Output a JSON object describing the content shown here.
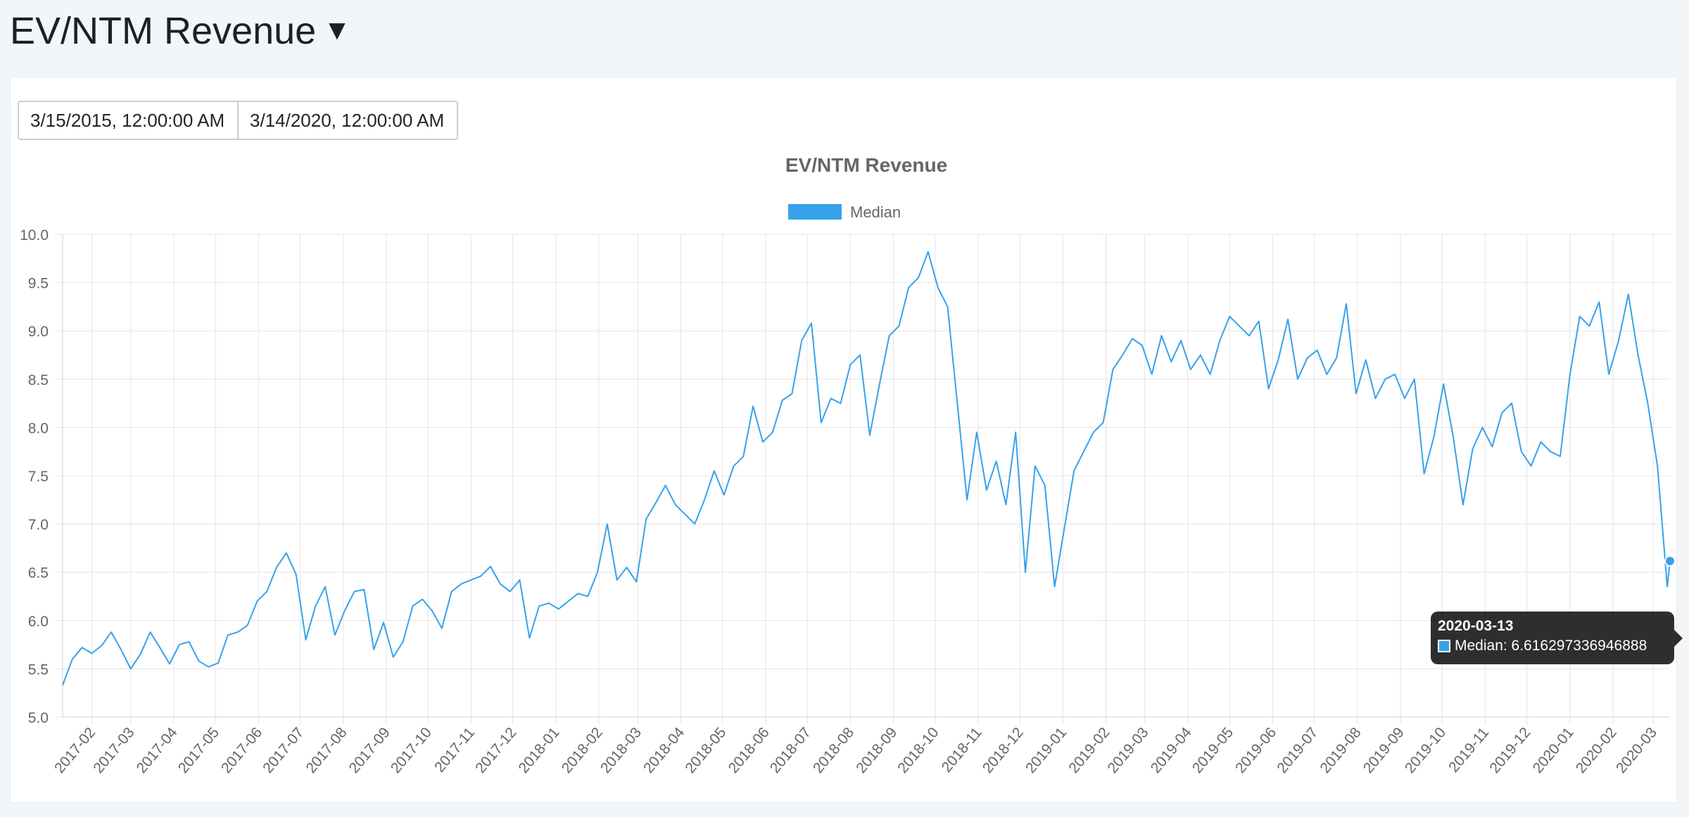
{
  "header": {
    "title": "EV/NTM Revenue",
    "caret": "▼"
  },
  "date_range": {
    "start": "3/15/2015, 12:00:00 AM",
    "end": "3/14/2020, 12:00:00 AM"
  },
  "tooltip": {
    "date": "2020-03-13",
    "series": "Median",
    "value": "6.616297336946888",
    "label": "Median: 6.616297336946888"
  },
  "colors": {
    "line": "#36a2eb",
    "grid": "#e4e4e4",
    "text": "#666666"
  },
  "chart_data": {
    "type": "line",
    "title": "EV/NTM Revenue",
    "legend": {
      "position": "top",
      "entries": [
        "Median"
      ]
    },
    "grid": true,
    "ylim": [
      5.0,
      10.0
    ],
    "y_ticks": [
      "10.0",
      "9.5",
      "9.0",
      "8.5",
      "8.0",
      "7.5",
      "7.0",
      "6.5",
      "6.0",
      "5.5",
      "5.0"
    ],
    "x_ticks": [
      "2017-02",
      "2017-03",
      "2017-04",
      "2017-05",
      "2017-06",
      "2017-07",
      "2017-08",
      "2017-09",
      "2017-10",
      "2017-11",
      "2017-12",
      "2018-01",
      "2018-02",
      "2018-03",
      "2018-04",
      "2018-05",
      "2018-06",
      "2018-07",
      "2018-08",
      "2018-09",
      "2018-10",
      "2018-11",
      "2018-12",
      "2019-01",
      "2019-02",
      "2019-03",
      "2019-04",
      "2019-05",
      "2019-06",
      "2019-07",
      "2019-08",
      "2019-09",
      "2019-10",
      "2019-11",
      "2019-12",
      "2020-01",
      "2020-02",
      "2020-03"
    ],
    "series": [
      {
        "name": "Median",
        "points": [
          [
            "2017-01-11",
            5.33
          ],
          [
            "2017-01-18",
            5.6
          ],
          [
            "2017-01-25",
            5.72
          ],
          [
            "2017-02-01",
            5.66
          ],
          [
            "2017-02-08",
            5.74
          ],
          [
            "2017-02-15",
            5.88
          ],
          [
            "2017-02-22",
            5.7
          ],
          [
            "2017-03-01",
            5.5
          ],
          [
            "2017-03-08",
            5.65
          ],
          [
            "2017-03-15",
            5.88
          ],
          [
            "2017-03-22",
            5.72
          ],
          [
            "2017-03-29",
            5.55
          ],
          [
            "2017-04-05",
            5.75
          ],
          [
            "2017-04-12",
            5.78
          ],
          [
            "2017-04-19",
            5.58
          ],
          [
            "2017-04-26",
            5.52
          ],
          [
            "2017-05-03",
            5.56
          ],
          [
            "2017-05-10",
            5.85
          ],
          [
            "2017-05-17",
            5.88
          ],
          [
            "2017-05-24",
            5.95
          ],
          [
            "2017-05-31",
            6.2
          ],
          [
            "2017-06-07",
            6.3
          ],
          [
            "2017-06-14",
            6.55
          ],
          [
            "2017-06-21",
            6.7
          ],
          [
            "2017-06-28",
            6.48
          ],
          [
            "2017-07-05",
            5.8
          ],
          [
            "2017-07-12",
            6.15
          ],
          [
            "2017-07-19",
            6.35
          ],
          [
            "2017-07-26",
            5.85
          ],
          [
            "2017-08-02",
            6.1
          ],
          [
            "2017-08-09",
            6.3
          ],
          [
            "2017-08-16",
            6.32
          ],
          [
            "2017-08-23",
            5.7
          ],
          [
            "2017-08-30",
            5.98
          ],
          [
            "2017-09-06",
            5.62
          ],
          [
            "2017-09-13",
            5.78
          ],
          [
            "2017-09-20",
            6.15
          ],
          [
            "2017-09-27",
            6.22
          ],
          [
            "2017-10-04",
            6.1
          ],
          [
            "2017-10-11",
            5.92
          ],
          [
            "2017-10-18",
            6.3
          ],
          [
            "2017-10-25",
            6.38
          ],
          [
            "2017-11-01",
            6.42
          ],
          [
            "2017-11-08",
            6.46
          ],
          [
            "2017-11-15",
            6.56
          ],
          [
            "2017-11-22",
            6.38
          ],
          [
            "2017-11-29",
            6.3
          ],
          [
            "2017-12-06",
            6.42
          ],
          [
            "2017-12-13",
            5.82
          ],
          [
            "2017-12-20",
            6.15
          ],
          [
            "2017-12-27",
            6.18
          ],
          [
            "2018-01-03",
            6.12
          ],
          [
            "2018-01-10",
            6.2
          ],
          [
            "2018-01-17",
            6.28
          ],
          [
            "2018-01-24",
            6.25
          ],
          [
            "2018-01-31",
            6.5
          ],
          [
            "2018-02-07",
            7.0
          ],
          [
            "2018-02-14",
            6.42
          ],
          [
            "2018-02-21",
            6.55
          ],
          [
            "2018-02-28",
            6.4
          ],
          [
            "2018-03-07",
            7.05
          ],
          [
            "2018-03-14",
            7.22
          ],
          [
            "2018-03-21",
            7.4
          ],
          [
            "2018-03-28",
            7.2
          ],
          [
            "2018-04-04",
            7.1
          ],
          [
            "2018-04-11",
            7.0
          ],
          [
            "2018-04-18",
            7.25
          ],
          [
            "2018-04-25",
            7.55
          ],
          [
            "2018-05-02",
            7.3
          ],
          [
            "2018-05-09",
            7.6
          ],
          [
            "2018-05-16",
            7.7
          ],
          [
            "2018-05-23",
            8.22
          ],
          [
            "2018-05-30",
            7.85
          ],
          [
            "2018-06-06",
            7.95
          ],
          [
            "2018-06-13",
            8.28
          ],
          [
            "2018-06-20",
            8.35
          ],
          [
            "2018-06-27",
            8.9
          ],
          [
            "2018-07-04",
            9.08
          ],
          [
            "2018-07-11",
            8.05
          ],
          [
            "2018-07-18",
            8.3
          ],
          [
            "2018-07-25",
            8.25
          ],
          [
            "2018-08-01",
            8.65
          ],
          [
            "2018-08-08",
            8.75
          ],
          [
            "2018-08-15",
            7.92
          ],
          [
            "2018-08-22",
            8.45
          ],
          [
            "2018-08-29",
            8.95
          ],
          [
            "2018-09-05",
            9.05
          ],
          [
            "2018-09-12",
            9.45
          ],
          [
            "2018-09-19",
            9.55
          ],
          [
            "2018-09-26",
            9.82
          ],
          [
            "2018-10-03",
            9.45
          ],
          [
            "2018-10-10",
            9.25
          ],
          [
            "2018-10-17",
            8.25
          ],
          [
            "2018-10-24",
            7.25
          ],
          [
            "2018-10-31",
            7.95
          ],
          [
            "2018-11-07",
            7.35
          ],
          [
            "2018-11-14",
            7.65
          ],
          [
            "2018-11-21",
            7.2
          ],
          [
            "2018-11-28",
            7.95
          ],
          [
            "2018-12-05",
            6.5
          ],
          [
            "2018-12-12",
            7.6
          ],
          [
            "2018-12-19",
            7.4
          ],
          [
            "2018-12-26",
            6.35
          ],
          [
            "2019-01-02",
            6.95
          ],
          [
            "2019-01-09",
            7.55
          ],
          [
            "2019-01-16",
            7.75
          ],
          [
            "2019-01-23",
            7.95
          ],
          [
            "2019-01-30",
            8.05
          ],
          [
            "2019-02-06",
            8.6
          ],
          [
            "2019-02-13",
            8.75
          ],
          [
            "2019-02-20",
            8.92
          ],
          [
            "2019-02-27",
            8.85
          ],
          [
            "2019-03-06",
            8.55
          ],
          [
            "2019-03-13",
            8.95
          ],
          [
            "2019-03-20",
            8.68
          ],
          [
            "2019-03-27",
            8.9
          ],
          [
            "2019-04-03",
            8.6
          ],
          [
            "2019-04-10",
            8.75
          ],
          [
            "2019-04-17",
            8.55
          ],
          [
            "2019-04-24",
            8.9
          ],
          [
            "2019-05-01",
            9.15
          ],
          [
            "2019-05-08",
            9.05
          ],
          [
            "2019-05-15",
            8.95
          ],
          [
            "2019-05-22",
            9.1
          ],
          [
            "2019-05-29",
            8.4
          ],
          [
            "2019-06-05",
            8.7
          ],
          [
            "2019-06-12",
            9.12
          ],
          [
            "2019-06-19",
            8.5
          ],
          [
            "2019-06-26",
            8.72
          ],
          [
            "2019-07-03",
            8.8
          ],
          [
            "2019-07-10",
            8.55
          ],
          [
            "2019-07-17",
            8.72
          ],
          [
            "2019-07-24",
            9.28
          ],
          [
            "2019-07-31",
            8.35
          ],
          [
            "2019-08-07",
            8.7
          ],
          [
            "2019-08-14",
            8.3
          ],
          [
            "2019-08-21",
            8.5
          ],
          [
            "2019-08-28",
            8.55
          ],
          [
            "2019-09-04",
            8.3
          ],
          [
            "2019-09-11",
            8.5
          ],
          [
            "2019-09-18",
            7.52
          ],
          [
            "2019-09-25",
            7.9
          ],
          [
            "2019-10-02",
            8.45
          ],
          [
            "2019-10-09",
            7.9
          ],
          [
            "2019-10-16",
            7.2
          ],
          [
            "2019-10-23",
            7.78
          ],
          [
            "2019-10-30",
            8.0
          ],
          [
            "2019-11-06",
            7.8
          ],
          [
            "2019-11-13",
            8.15
          ],
          [
            "2019-11-20",
            8.25
          ],
          [
            "2019-11-27",
            7.75
          ],
          [
            "2019-12-04",
            7.6
          ],
          [
            "2019-12-11",
            7.85
          ],
          [
            "2019-12-18",
            7.75
          ],
          [
            "2019-12-25",
            7.7
          ],
          [
            "2020-01-01",
            8.55
          ],
          [
            "2020-01-08",
            9.15
          ],
          [
            "2020-01-15",
            9.05
          ],
          [
            "2020-01-22",
            9.3
          ],
          [
            "2020-01-29",
            8.55
          ],
          [
            "2020-02-05",
            8.9
          ],
          [
            "2020-02-12",
            9.38
          ],
          [
            "2020-02-19",
            8.75
          ],
          [
            "2020-02-26",
            8.25
          ],
          [
            "2020-03-04",
            7.6
          ],
          [
            "2020-03-11",
            6.35
          ],
          [
            "2020-03-13",
            6.616297336946888
          ]
        ]
      }
    ]
  }
}
